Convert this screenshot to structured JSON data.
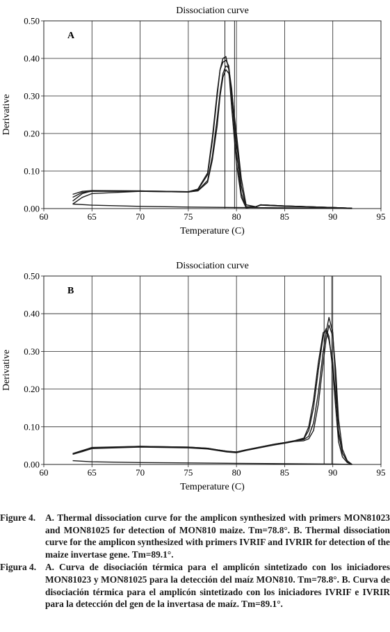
{
  "chart_data": [
    {
      "type": "line",
      "panel_label": "A",
      "title": "Dissociation curve",
      "xlabel": "Temperature (C)",
      "ylabel": "Derivative",
      "xlim": [
        60,
        95
      ],
      "ylim": [
        0,
        0.5
      ],
      "xticks": [
        "60",
        "65",
        "70",
        "75",
        "80",
        "85",
        "90",
        "95"
      ],
      "yticks": [
        "0.00",
        "0.10",
        "0.20",
        "0.30",
        "0.40",
        "0.50"
      ],
      "grid": true,
      "vlines": [
        78.8,
        79.8
      ],
      "series": [
        {
          "x": [
            63,
            64,
            65,
            70,
            75,
            76,
            77,
            77.5,
            78,
            78.3,
            78.6,
            78.9,
            79.2,
            79.5,
            80,
            80.5,
            81,
            82,
            82.5,
            85,
            90,
            92
          ],
          "y": [
            0.02,
            0.04,
            0.047,
            0.047,
            0.045,
            0.05,
            0.09,
            0.18,
            0.3,
            0.37,
            0.4,
            0.405,
            0.37,
            0.27,
            0.12,
            0.03,
            0.002,
            0.005,
            0.01,
            0.007,
            0.003,
            0.001
          ]
        },
        {
          "x": [
            63,
            64,
            65,
            70,
            75,
            76,
            77,
            77.5,
            78,
            78.3,
            78.6,
            78.9,
            79.2,
            79.5,
            80,
            80.5,
            81,
            82,
            82.5,
            85,
            90,
            92
          ],
          "y": [
            0.03,
            0.043,
            0.046,
            0.046,
            0.044,
            0.048,
            0.075,
            0.14,
            0.24,
            0.31,
            0.36,
            0.38,
            0.375,
            0.32,
            0.18,
            0.06,
            0.005,
            0.005,
            0.01,
            0.007,
            0.003,
            0.001
          ]
        },
        {
          "x": [
            63,
            64,
            65,
            70,
            75,
            76,
            77,
            77.5,
            78,
            78.3,
            78.6,
            78.9,
            79.2,
            79.5,
            80,
            80.5,
            81,
            82,
            82.5,
            85,
            90,
            92
          ],
          "y": [
            0.038,
            0.046,
            0.048,
            0.047,
            0.045,
            0.052,
            0.095,
            0.19,
            0.31,
            0.37,
            0.39,
            0.395,
            0.38,
            0.3,
            0.15,
            0.04,
            0.003,
            0.004,
            0.009,
            0.006,
            0.003,
            0.001
          ]
        },
        {
          "x": [
            63,
            64,
            65,
            70,
            75,
            76,
            77,
            77.5,
            78,
            78.3,
            78.6,
            78.9,
            79.2,
            79.5,
            80,
            80.5,
            81,
            82,
            82.5,
            85,
            90,
            92
          ],
          "y": [
            0.012,
            0.03,
            0.04,
            0.046,
            0.044,
            0.047,
            0.07,
            0.13,
            0.22,
            0.3,
            0.35,
            0.37,
            0.36,
            0.31,
            0.2,
            0.08,
            0.01,
            0.005,
            0.01,
            0.007,
            0.003,
            0.001
          ]
        },
        {
          "x": [
            63,
            65,
            70,
            75,
            80,
            85,
            90,
            92
          ],
          "y": [
            0.012,
            0.009,
            0.006,
            0.004,
            0.003,
            0.002,
            0.001,
            0.0
          ]
        }
      ]
    },
    {
      "type": "line",
      "panel_label": "B",
      "title": "Dissociation curve",
      "xlabel": "Temperature (C)",
      "ylabel": "Derivative",
      "xlim": [
        60,
        95
      ],
      "ylim": [
        0,
        0.5
      ],
      "xticks": [
        "60",
        "65",
        "70",
        "75",
        "80",
        "85",
        "90",
        "95"
      ],
      "yticks": [
        "0.00",
        "0.10",
        "0.20",
        "0.30",
        "0.40",
        "0.50"
      ],
      "grid": true,
      "vlines": [
        89.1,
        89.9
      ],
      "series": [
        {
          "x": [
            63,
            64,
            65,
            70,
            75,
            77,
            78,
            79,
            80,
            81,
            82,
            83,
            84,
            85,
            86,
            87,
            87.5,
            88,
            88.5,
            89,
            89.3,
            89.6,
            90,
            90.3,
            90.6,
            91,
            91.5,
            92
          ],
          "y": [
            0.028,
            0.035,
            0.043,
            0.047,
            0.045,
            0.042,
            0.038,
            0.034,
            0.032,
            0.038,
            0.043,
            0.048,
            0.053,
            0.057,
            0.062,
            0.068,
            0.09,
            0.15,
            0.25,
            0.34,
            0.36,
            0.34,
            0.25,
            0.15,
            0.06,
            0.02,
            0.005,
            0.0
          ]
        },
        {
          "x": [
            63,
            64,
            65,
            70,
            75,
            77,
            78,
            79,
            80,
            81,
            82,
            83,
            84,
            85,
            86,
            87,
            87.5,
            88,
            88.5,
            89,
            89.3,
            89.6,
            90,
            90.3,
            90.6,
            91,
            91.5,
            92
          ],
          "y": [
            0.028,
            0.036,
            0.044,
            0.048,
            0.046,
            0.043,
            0.039,
            0.035,
            0.033,
            0.039,
            0.044,
            0.049,
            0.054,
            0.058,
            0.063,
            0.066,
            0.075,
            0.11,
            0.19,
            0.3,
            0.35,
            0.39,
            0.35,
            0.22,
            0.08,
            0.03,
            0.008,
            0.0
          ]
        },
        {
          "x": [
            63,
            64,
            65,
            70,
            75,
            77,
            78,
            79,
            80,
            81,
            82,
            83,
            84,
            85,
            86,
            87,
            87.5,
            88,
            88.5,
            89,
            89.3,
            89.6,
            90,
            90.3,
            90.6,
            91,
            91.5,
            92
          ],
          "y": [
            0.027,
            0.034,
            0.042,
            0.046,
            0.044,
            0.041,
            0.037,
            0.033,
            0.031,
            0.037,
            0.042,
            0.047,
            0.052,
            0.056,
            0.061,
            0.063,
            0.068,
            0.09,
            0.16,
            0.27,
            0.33,
            0.37,
            0.34,
            0.25,
            0.12,
            0.04,
            0.01,
            0.0
          ]
        },
        {
          "x": [
            63,
            64,
            65,
            70,
            75,
            77,
            78,
            79,
            80,
            81,
            82,
            83,
            84,
            85,
            86,
            87,
            87.5,
            88,
            88.5,
            89,
            89.3,
            89.6,
            90,
            90.3,
            90.6,
            91,
            91.5,
            92
          ],
          "y": [
            0.029,
            0.037,
            0.045,
            0.048,
            0.046,
            0.043,
            0.039,
            0.035,
            0.033,
            0.039,
            0.044,
            0.049,
            0.054,
            0.058,
            0.063,
            0.07,
            0.1,
            0.17,
            0.27,
            0.35,
            0.355,
            0.33,
            0.27,
            0.18,
            0.09,
            0.03,
            0.008,
            0.0
          ]
        },
        {
          "x": [
            63,
            65,
            70,
            75,
            80,
            85,
            90,
            92
          ],
          "y": [
            0.01,
            0.007,
            0.005,
            0.004,
            0.003,
            0.002,
            0.001,
            0.0
          ]
        }
      ]
    }
  ],
  "caption": {
    "en_label": "Figure 4.",
    "en_text": "A. Thermal dissociation curve for the amplicon synthesized with primers MON81023 and MON81025 for detection of MON810 maize. Tm=78.8°. B. Thermal dissociation curve for the amplicon synthesized with primers IVRIF and IVRIR for detection of the maize invertase gene. Tm=89.1°.",
    "es_label": "Figura 4.",
    "es_text": "A. Curva de disociación térmica para el amplicón sintetizado con los iniciadores MON81023 y MON81025 para la detección del maíz MON810. Tm=78.8°. B. Curva de disociación térmica para el amplicón sintetizado con los iniciadores IVRIF e IVRIR para la detección del gen de la invertasa de maíz. Tm=89.1°."
  }
}
